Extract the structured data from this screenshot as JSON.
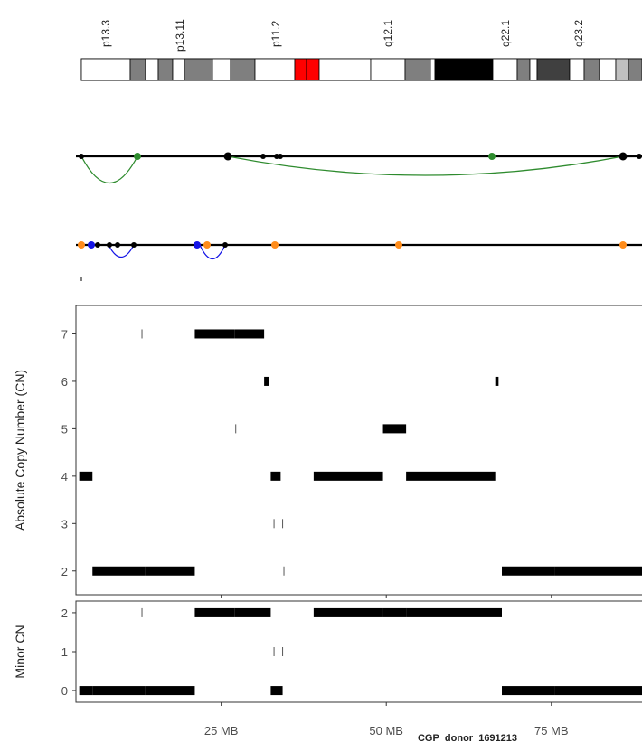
{
  "chart_data": [
    {
      "type": "ideogram",
      "band_labels": [
        "p13.3",
        "p13.11",
        "p11.2",
        "q12.1",
        "q22.1",
        "q23.2"
      ],
      "centromere_color": "#ff0000"
    },
    {
      "type": "arc",
      "name": "structural-variant-arcs",
      "colors": {
        "translocation": "#2e8b2e",
        "deletion": "#1414e6",
        "other": "#ff8c1a",
        "node": "#000000"
      }
    },
    {
      "type": "scatter",
      "title": "",
      "ylabel": "Absolute Copy Number (CN)",
      "yticks": [
        "2",
        "3",
        "4",
        "5",
        "6",
        "7"
      ],
      "ylim": [
        1.5,
        7.6
      ],
      "xlim": [
        3,
        89
      ],
      "segments": [
        {
          "x0": 3.5,
          "x1": 5.5,
          "y": 4
        },
        {
          "x0": 5.5,
          "x1": 13.5,
          "y": 2
        },
        {
          "x0": 13.5,
          "x1": 21.0,
          "y": 2
        },
        {
          "x0": 21.0,
          "x1": 27.0,
          "y": 7
        },
        {
          "x0": 27.0,
          "x1": 31.5,
          "y": 7
        },
        {
          "x0": 31.5,
          "x1": 32.2,
          "y": 6
        },
        {
          "x0": 32.5,
          "x1": 34.0,
          "y": 4
        },
        {
          "x0": 39.0,
          "x1": 49.5,
          "y": 4
        },
        {
          "x0": 49.5,
          "x1": 53.0,
          "y": 5
        },
        {
          "x0": 53.0,
          "x1": 66.5,
          "y": 4
        },
        {
          "x0": 66.5,
          "x1": 67.0,
          "y": 6
        },
        {
          "x0": 67.5,
          "x1": 75.5,
          "y": 2
        },
        {
          "x0": 75.5,
          "x1": 89.5,
          "y": 2
        },
        {
          "x0": 89.0,
          "x1": 89.5,
          "y": 6
        }
      ],
      "marks": [
        {
          "x": 13.0,
          "y": 7
        },
        {
          "x": 27.2,
          "y": 5
        },
        {
          "x": 33.0,
          "y": 3
        },
        {
          "x": 34.3,
          "y": 3
        },
        {
          "x": 34.5,
          "y": 2
        }
      ]
    },
    {
      "type": "scatter",
      "ylabel": "Minor CN",
      "yticks": [
        "0",
        "1",
        "2"
      ],
      "ylim": [
        -0.3,
        2.3
      ],
      "xlim": [
        3,
        89
      ],
      "xticks": [
        25,
        50,
        75
      ],
      "xtick_labels": [
        "25 MB",
        "50 MB",
        "75 MB"
      ],
      "xlabel": "CGP_donor_1691213",
      "segments": [
        {
          "x0": 3.5,
          "x1": 5.5,
          "y": 0
        },
        {
          "x0": 5.5,
          "x1": 13.5,
          "y": 0
        },
        {
          "x0": 13.5,
          "x1": 21.0,
          "y": 0
        },
        {
          "x0": 21.0,
          "x1": 27.0,
          "y": 2
        },
        {
          "x0": 27.0,
          "x1": 32.5,
          "y": 2
        },
        {
          "x0": 32.5,
          "x1": 34.3,
          "y": 0
        },
        {
          "x0": 39.0,
          "x1": 49.5,
          "y": 2
        },
        {
          "x0": 49.5,
          "x1": 53.0,
          "y": 2
        },
        {
          "x0": 53.0,
          "x1": 67.5,
          "y": 2
        },
        {
          "x0": 67.5,
          "x1": 75.5,
          "y": 0
        },
        {
          "x0": 75.5,
          "x1": 89.5,
          "y": 0
        },
        {
          "x0": 89.0,
          "x1": 89.5,
          "y": 2
        }
      ],
      "marks": [
        {
          "x": 13.0,
          "y": 2
        },
        {
          "x": 33.0,
          "y": 1
        },
        {
          "x": 34.3,
          "y": 1
        }
      ]
    }
  ]
}
